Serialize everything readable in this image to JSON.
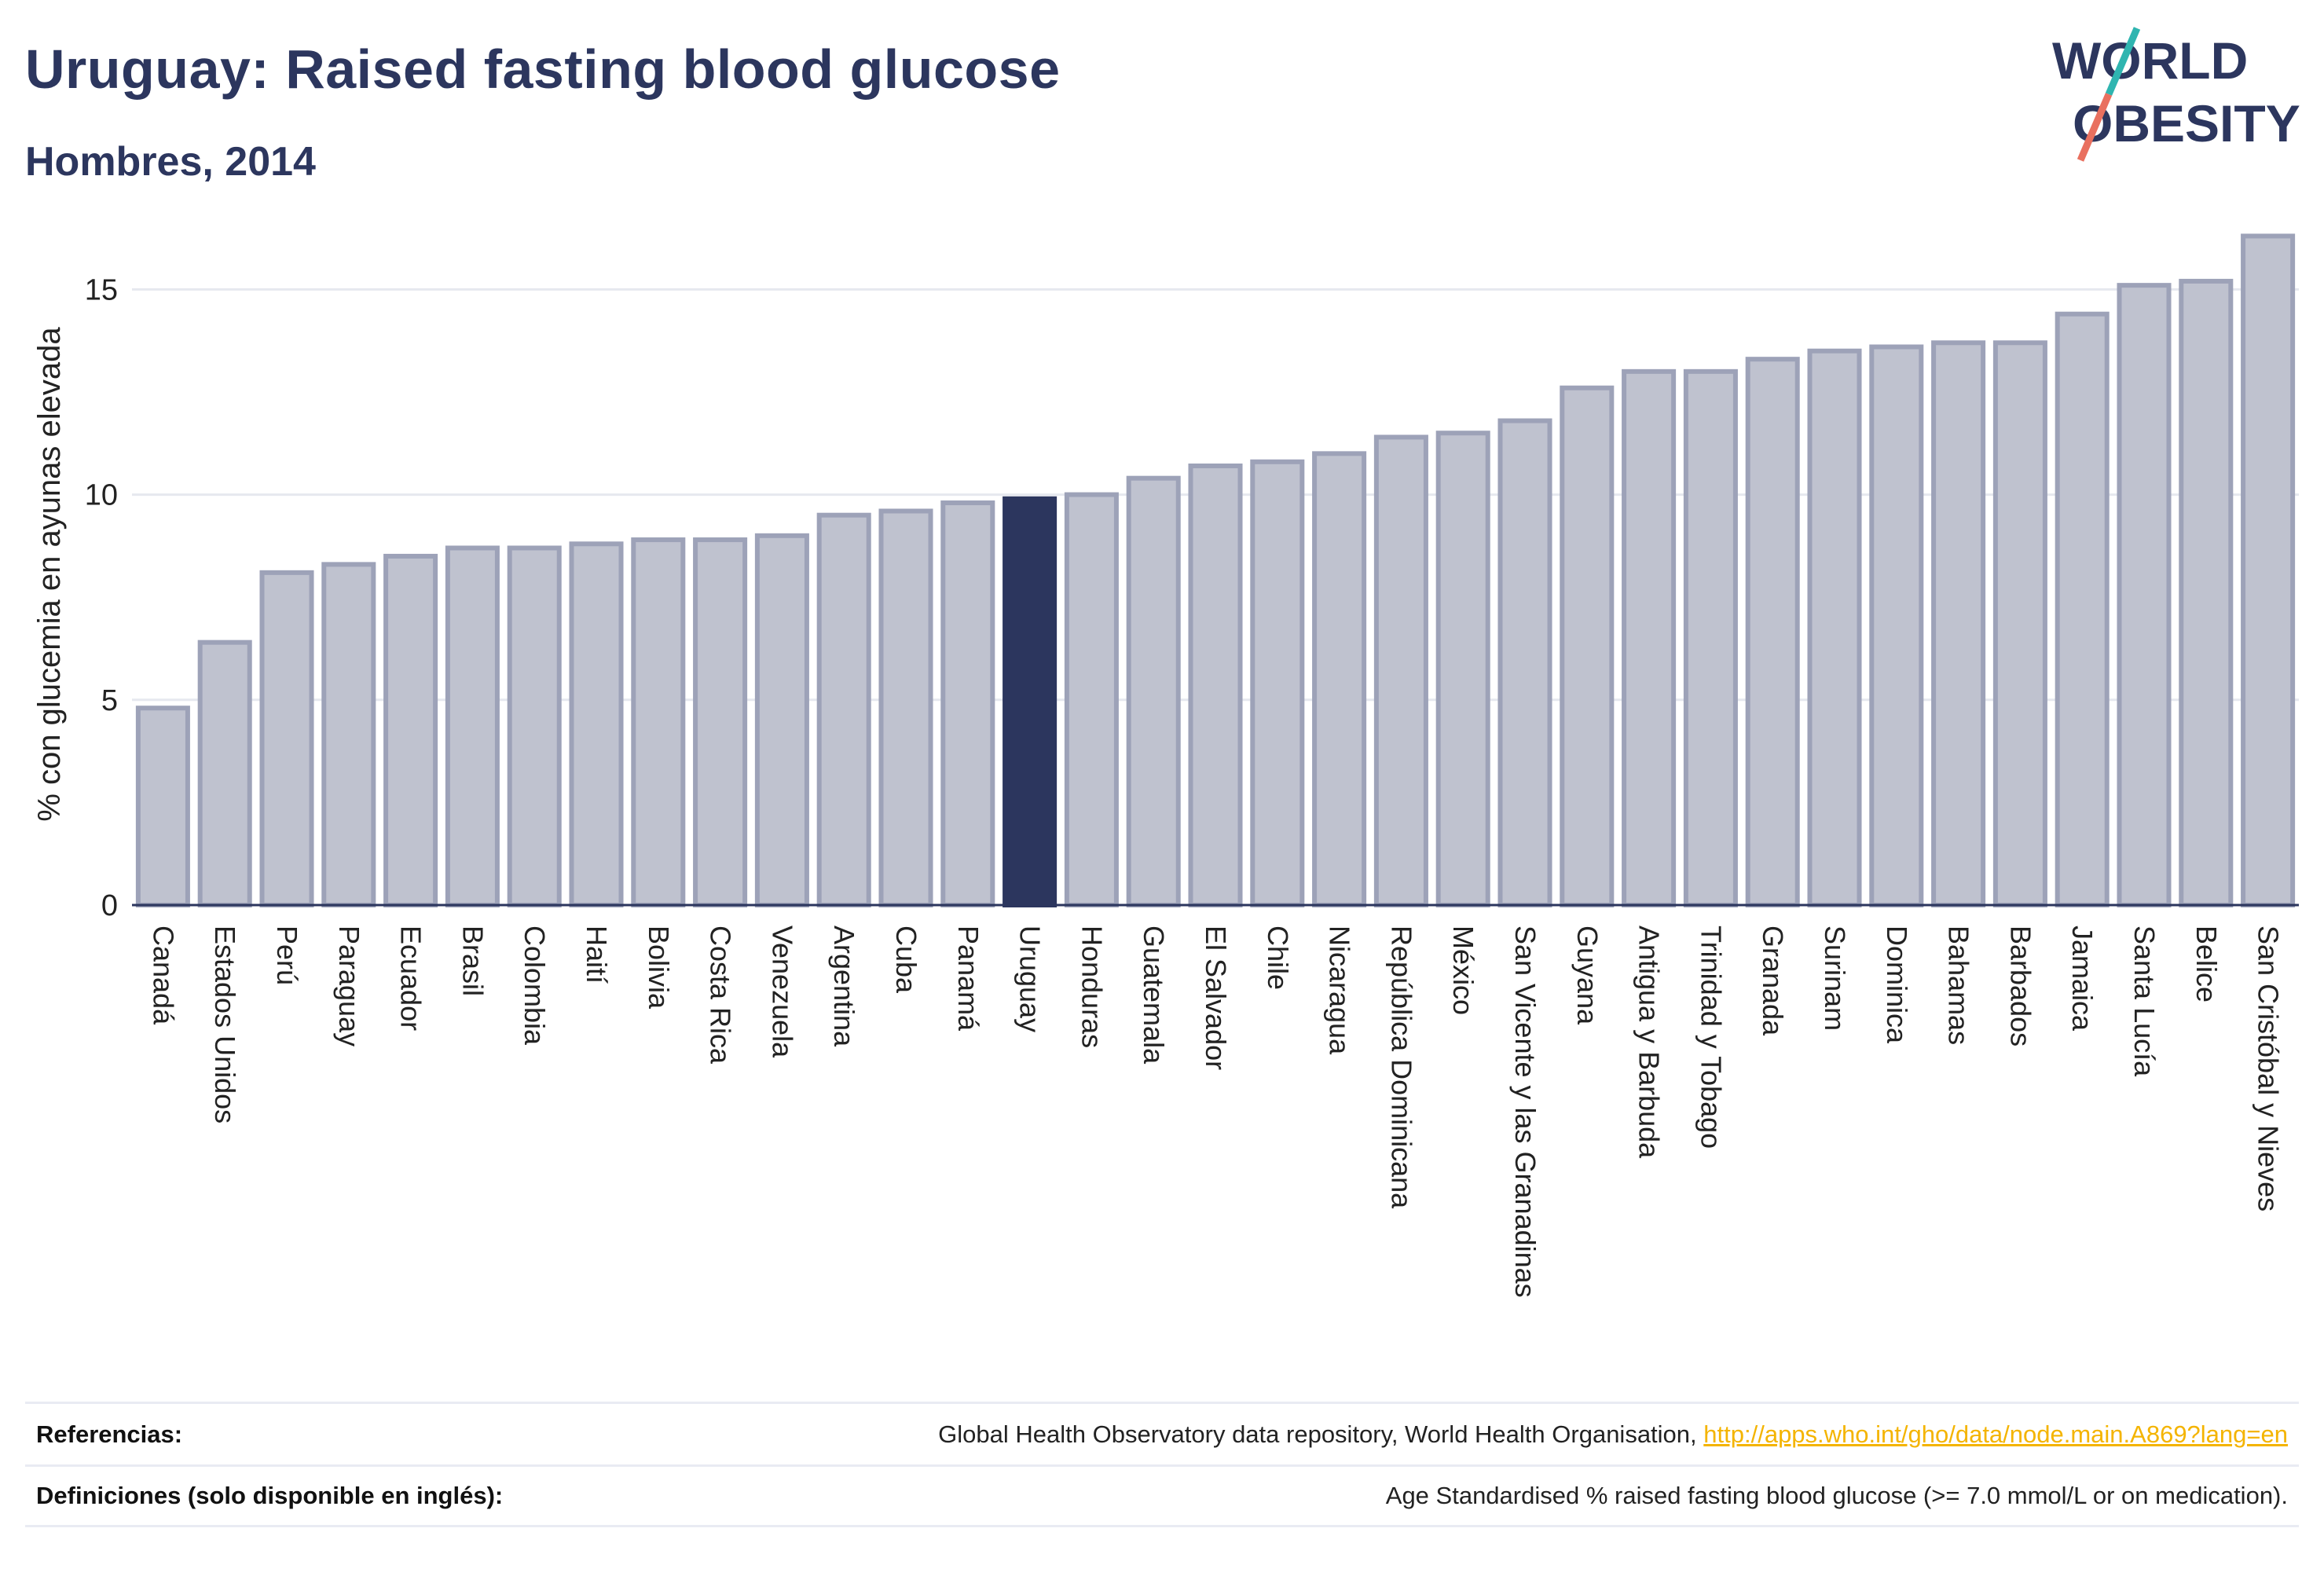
{
  "header": {
    "title": "Uruguay: Raised fasting blood glucose",
    "subtitle": "Hombres, 2014"
  },
  "logo": {
    "line1": "WORLD",
    "line2": "OBESITY"
  },
  "colors": {
    "highlight": "#2c365e",
    "bar_fill": "#bfc2cf",
    "bar_stroke": "#9da2b8",
    "grid": "#e6e8ef",
    "logo_teal": "#2fb5b0",
    "logo_coral": "#e9705f"
  },
  "chart_data": {
    "type": "bar",
    "ylabel": "% con glucemia en ayunas elevada",
    "ylim": [
      0,
      16.5
    ],
    "yticks": [
      0,
      5,
      10,
      15
    ],
    "grid": true,
    "highlight": "Uruguay",
    "categories": [
      "Canadá",
      "Estados Unidos",
      "Perú",
      "Paraguay",
      "Ecuador",
      "Brasil",
      "Colombia",
      "Haití",
      "Bolivia",
      "Costa Rica",
      "Venezuela",
      "Argentina",
      "Cuba",
      "Panamá",
      "Uruguay",
      "Honduras",
      "Guatemala",
      "El Salvador",
      "Chile",
      "Nicaragua",
      "República Dominicana",
      "México",
      "San Vicente y las Granadinas",
      "Guyana",
      "Antigua y Barbuda",
      "Trinidad y Tobago",
      "Granada",
      "Surinam",
      "Dominica",
      "Bahamas",
      "Barbados",
      "Jamaica",
      "Santa Lucía",
      "Belice",
      "San Cristóbal y Nieves"
    ],
    "values": [
      4.8,
      6.4,
      8.1,
      8.3,
      8.5,
      8.7,
      8.7,
      8.8,
      8.9,
      8.9,
      9.0,
      9.5,
      9.6,
      9.8,
      9.9,
      10.0,
      10.4,
      10.7,
      10.8,
      11.0,
      11.4,
      11.5,
      11.8,
      12.6,
      13.0,
      13.0,
      13.3,
      13.5,
      13.6,
      13.7,
      13.7,
      14.4,
      15.1,
      15.2,
      16.3
    ]
  },
  "footer": {
    "references_label": "Referencias:",
    "references_text": "Global Health Observatory data repository, World Health Organisation,",
    "references_link": "http://apps.who.int/gho/data/node.main.A869?lang=en",
    "definitions_label": "Definiciones (solo disponible en inglés):",
    "definitions_text": "Age Standardised % raised fasting blood glucose (>= 7.0 mmol/L or on medication)."
  }
}
